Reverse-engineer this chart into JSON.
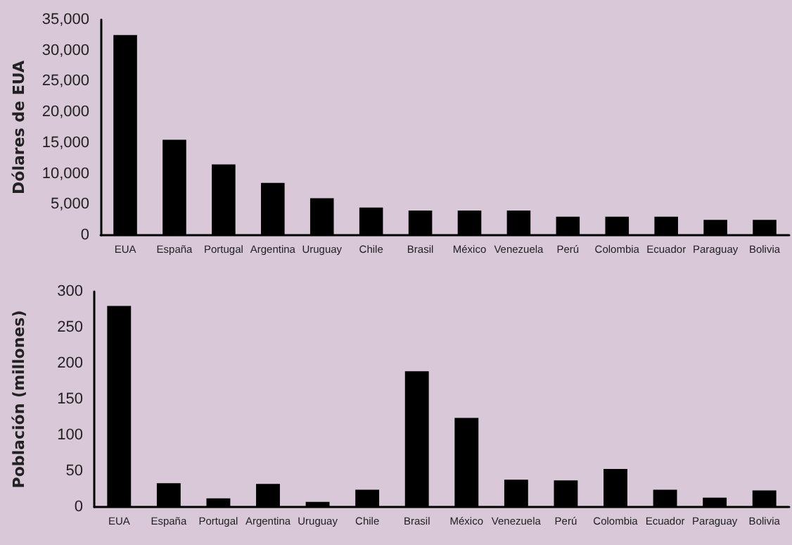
{
  "chart_data": [
    {
      "type": "bar",
      "ylabel": "Dólares de EUA",
      "categories": [
        "EUA",
        "España",
        "Portugal",
        "Argentina",
        "Uruguay",
        "Chile",
        "Brasil",
        "México",
        "Venezuela",
        "Perú",
        "Colombia",
        "Ecuador",
        "Paraguay",
        "Bolivia"
      ],
      "series": [
        {
          "color": "#000000",
          "values": [
            32500,
            15500,
            11500,
            8500,
            6000,
            4500,
            4000,
            4000,
            4000,
            3000,
            3000,
            3000,
            2500,
            2500
          ]
        }
      ],
      "ylim": [
        0,
        35000
      ],
      "yticks": [
        {
          "value": 0,
          "label": "0"
        },
        {
          "value": 5000,
          "label": "5,000"
        },
        {
          "value": 10000,
          "label": "10,000"
        },
        {
          "value": 15000,
          "label": "15,000"
        },
        {
          "value": 20000,
          "label": "20,000"
        },
        {
          "value": 25000,
          "label": "25,000"
        },
        {
          "value": 30000,
          "label": "30,000"
        },
        {
          "value": 35000,
          "label": "35,000"
        }
      ],
      "grid": false
    },
    {
      "type": "bar",
      "ylabel": "Población (millones)",
      "categories": [
        "EUA",
        "España",
        "Portugal",
        "Argentina",
        "Uruguay",
        "Chile",
        "Brasil",
        "México",
        "Venezuela",
        "Perú",
        "Colombia",
        "Ecuador",
        "Paraguay",
        "Bolivia"
      ],
      "series": [
        {
          "color": "#000000",
          "values": [
            280,
            33,
            12,
            32,
            7,
            24,
            189,
            124,
            38,
            37,
            53,
            24,
            13,
            23
          ]
        }
      ],
      "ylim": [
        0,
        300
      ],
      "yticks": [
        0,
        50,
        100,
        150,
        200,
        250,
        300
      ],
      "grid": false
    }
  ]
}
